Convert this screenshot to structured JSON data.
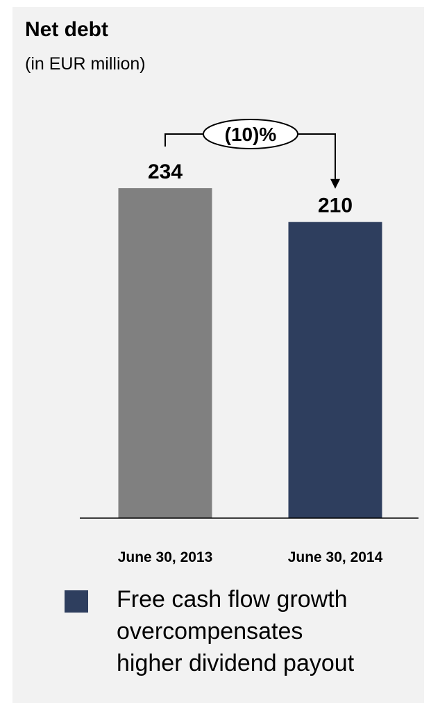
{
  "title": "Net debt",
  "subtitle": "(in EUR million)",
  "chart_data": {
    "type": "bar",
    "categories": [
      "June 30, 2013",
      "June 30, 2014"
    ],
    "values": [
      234,
      210
    ],
    "colors": [
      "#808080",
      "#2e3e5e"
    ],
    "data_labels": [
      "234",
      "210"
    ],
    "change_annotation": "(10)%",
    "title": "Net debt",
    "subtitle": "(in EUR million)",
    "xlabel": "",
    "ylabel": "",
    "ylim": [
      0,
      260
    ],
    "grid": false,
    "legend": "none"
  },
  "bullet": {
    "color": "#2e3e5e",
    "lines": [
      "Free cash flow growth",
      "overcompensates",
      "higher dividend payout"
    ]
  }
}
